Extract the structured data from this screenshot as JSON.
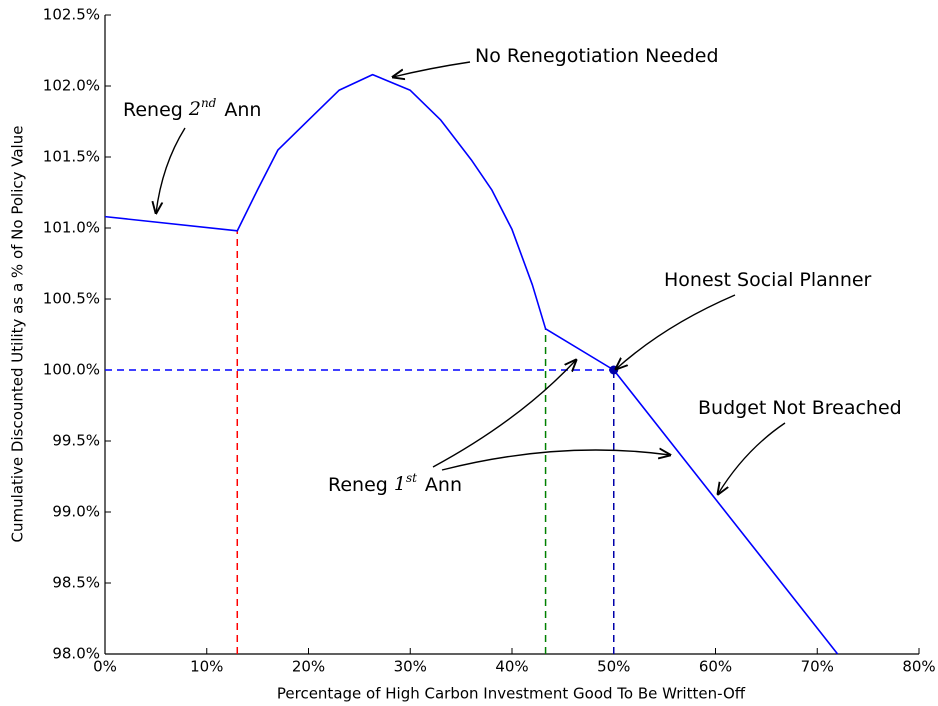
{
  "chart_data": {
    "type": "line",
    "x_label": "Percentage of High Carbon Investment Good To Be Written-Off",
    "y_label": "Cumulative Discounted Utility as a % of No Policy Value",
    "x": [
      0,
      13,
      15,
      17,
      20,
      23,
      26.3,
      30,
      33,
      36,
      38,
      40,
      42,
      43.3,
      50,
      72
    ],
    "series": [
      {
        "name": "Cumulative Discounted Utility",
        "color": "#0000ff",
        "values": [
          101.08,
          100.98,
          101.27,
          101.55,
          101.76,
          101.97,
          102.08,
          101.97,
          101.76,
          101.48,
          101.27,
          100.99,
          100.6,
          100.29,
          100.0,
          98.0
        ]
      }
    ],
    "xlim": [
      0,
      80
    ],
    "xticks": [
      {
        "value": 0,
        "label": "0%"
      },
      {
        "value": 10,
        "label": "10%"
      },
      {
        "value": 20,
        "label": "20%"
      },
      {
        "value": 30,
        "label": "30%"
      },
      {
        "value": 40,
        "label": "40%"
      },
      {
        "value": 50,
        "label": "50%"
      },
      {
        "value": 60,
        "label": "60%"
      },
      {
        "value": 70,
        "label": "70%"
      },
      {
        "value": 80,
        "label": "80%"
      }
    ],
    "ylim": [
      98.0,
      102.5
    ],
    "yticks": [
      {
        "value": 98.0,
        "label": "98.0%"
      },
      {
        "value": 98.5,
        "label": "98.5%"
      },
      {
        "value": 99.0,
        "label": "99.0%"
      },
      {
        "value": 99.5,
        "label": "99.5%"
      },
      {
        "value": 100.0,
        "label": "100.0%"
      },
      {
        "value": 100.5,
        "label": "100.5%"
      },
      {
        "value": 101.0,
        "label": "101.0%"
      },
      {
        "value": 101.5,
        "label": "101.5%"
      },
      {
        "value": 102.0,
        "label": "102.0%"
      },
      {
        "value": 102.5,
        "label": "102.5%"
      }
    ],
    "reference_lines": [
      {
        "x": 13,
        "y": 100.98,
        "color": "#ff0000"
      },
      {
        "x": 43.3,
        "y": 100.29,
        "color": "#008000"
      },
      {
        "x": 50,
        "y": 100.0,
        "color": "#0000aa"
      }
    ],
    "hline": {
      "x": 50,
      "y": 100.0,
      "color": "#0000ff"
    },
    "point": {
      "x": 50,
      "y": 100.0,
      "color": "#0000aa"
    },
    "annotations": [
      {
        "text": "No Renegotiation Needed"
      },
      {
        "text": "Reneg",
        "number": "2",
        "sup": "nd",
        "after": "Ann"
      },
      {
        "text": "Honest Social Planner"
      },
      {
        "text": "Budget Not Breached"
      },
      {
        "text": "Reneg",
        "number": "1",
        "sup": "st",
        "after": "Ann"
      }
    ]
  }
}
